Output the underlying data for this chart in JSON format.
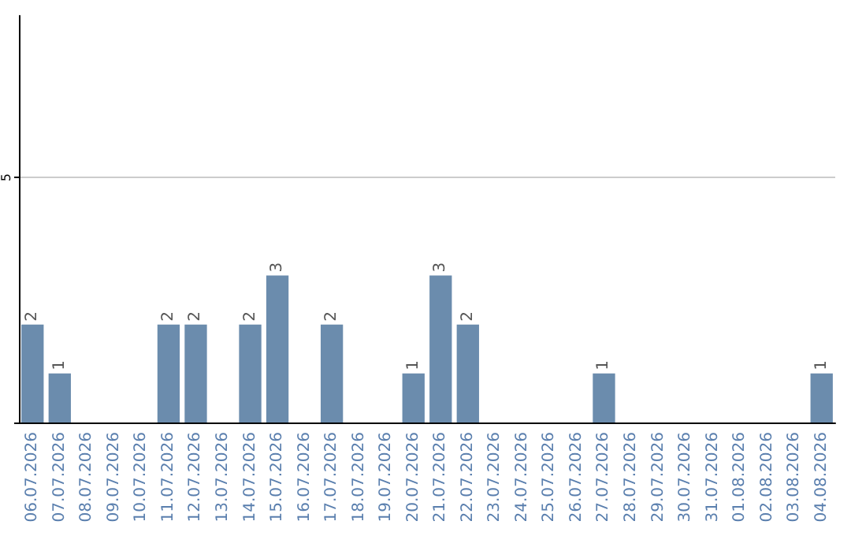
{
  "chart_data": {
    "type": "bar",
    "categories": [
      "06.07.2026",
      "07.07.2026",
      "08.07.2026",
      "09.07.2026",
      "10.07.2026",
      "11.07.2026",
      "12.07.2026",
      "13.07.2026",
      "14.07.2026",
      "15.07.2026",
      "16.07.2026",
      "17.07.2026",
      "18.07.2026",
      "19.07.2026",
      "20.07.2026",
      "21.07.2026",
      "22.07.2026",
      "23.07.2026",
      "24.07.2026",
      "25.07.2026",
      "26.07.2026",
      "27.07.2026",
      "28.07.2026",
      "29.07.2026",
      "30.07.2026",
      "31.07.2026",
      "01.08.2026",
      "02.08.2026",
      "03.08.2026",
      "04.08.2026"
    ],
    "values": [
      2,
      1,
      0,
      0,
      0,
      2,
      2,
      0,
      2,
      3,
      0,
      2,
      0,
      0,
      1,
      3,
      2,
      0,
      0,
      0,
      0,
      1,
      0,
      0,
      0,
      0,
      0,
      0,
      0,
      1
    ],
    "value_labels": [
      "2",
      "1",
      null,
      null,
      null,
      "2",
      "2",
      null,
      "2",
      "3",
      null,
      "2",
      null,
      null,
      "1",
      "3",
      "2",
      null,
      null,
      null,
      null,
      "1",
      null,
      null,
      null,
      null,
      null,
      null,
      null,
      "1"
    ],
    "color": "#6b8cad",
    "ylim": [
      0,
      8.3
    ],
    "yticks": [
      {
        "value": 0,
        "label": null
      },
      5
    ],
    "grid": "y"
  }
}
